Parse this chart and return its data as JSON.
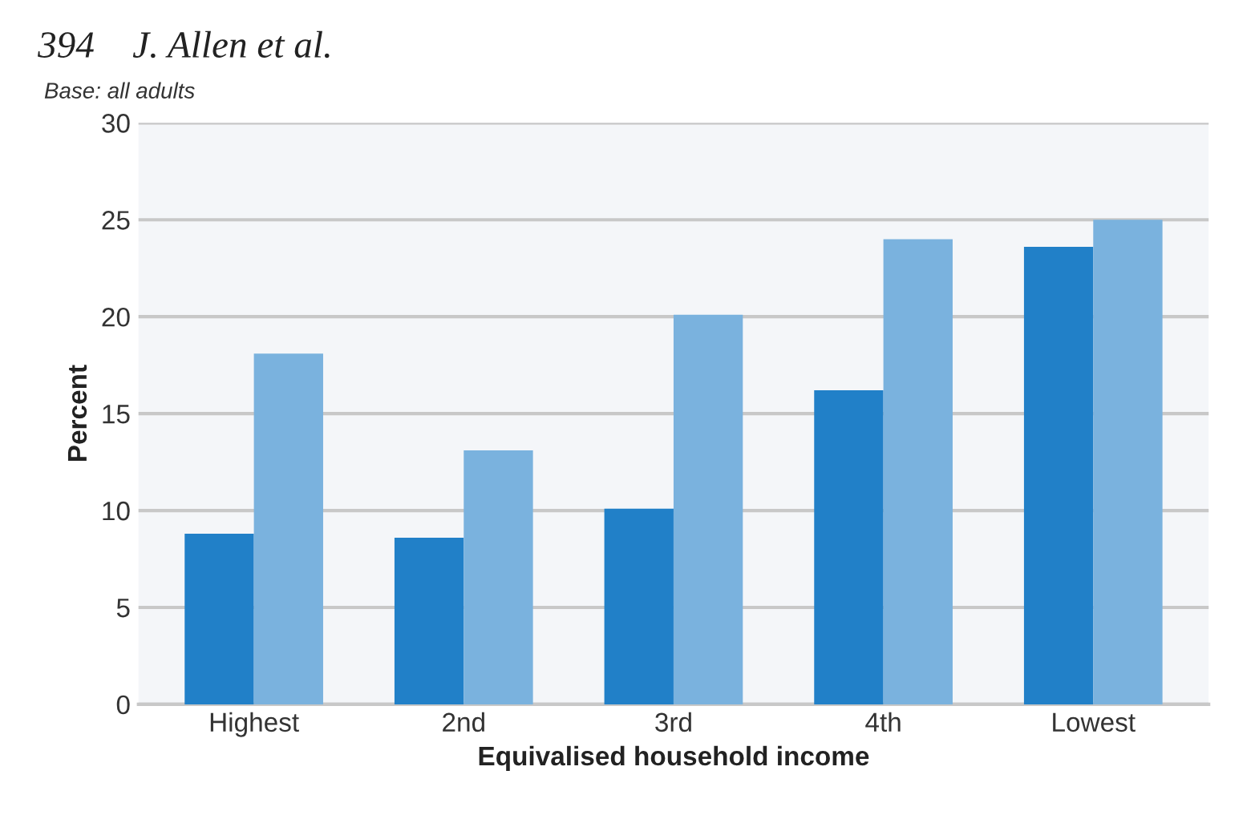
{
  "chart_data": {
    "type": "bar",
    "subtitle": "Base: all adults",
    "xlabel": "Equivalised household income",
    "ylabel": "Percent",
    "annotations": [
      "394    J. Allen et al."
    ],
    "categories": [
      "Highest",
      "2nd",
      "3rd",
      "4th",
      "Lowest"
    ],
    "series": [
      {
        "color": "#2180c8",
        "values": [
          8.8,
          8.6,
          10.1,
          16.2,
          23.6
        ]
      },
      {
        "color": "#7ab2de",
        "values": [
          18.1,
          13.1,
          20.1,
          24.0,
          25.0
        ]
      }
    ],
    "ylim": [
      0,
      30
    ],
    "yticks": [
      0,
      5,
      10,
      15,
      20,
      25,
      30
    ],
    "grid": "y",
    "legend": false
  }
}
